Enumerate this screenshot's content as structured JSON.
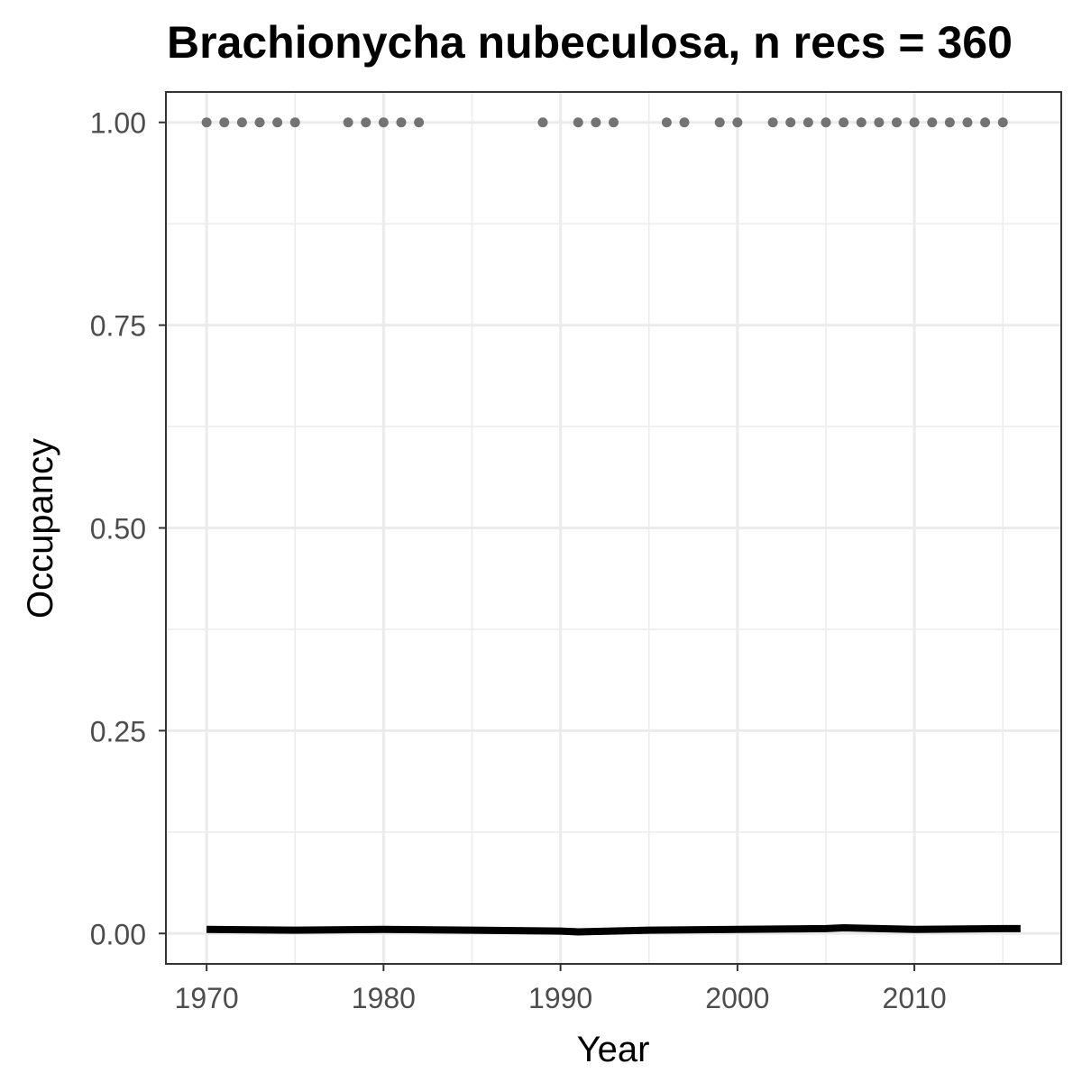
{
  "chart_data": {
    "type": "scatter",
    "title": "Brachionycha nubeculosa, n recs = 360",
    "xlabel": "Year",
    "ylabel": "Occupancy",
    "xlim": [
      1967.7,
      2018.3
    ],
    "ylim": [
      -0.0375,
      1.0375
    ],
    "x_ticks": [
      1970,
      1980,
      1990,
      2000,
      2010
    ],
    "x_tick_labels": [
      "1970",
      "1980",
      "1990",
      "2000",
      "2010"
    ],
    "x_minor_ticks": [
      1975,
      1985,
      1995,
      2005,
      2015
    ],
    "y_ticks": [
      0.0,
      0.25,
      0.5,
      0.75,
      1.0
    ],
    "y_tick_labels": [
      "0.00",
      "0.25",
      "0.50",
      "0.75",
      "1.00"
    ],
    "y_minor_ticks": [
      0.125,
      0.375,
      0.625,
      0.875
    ],
    "grid": true,
    "colors": {
      "points": "#737373",
      "line": "#000000",
      "grid": "#ebebeb",
      "panel_border": "#333333"
    },
    "series": [
      {
        "type": "scatter",
        "x": [
          1970,
          1971,
          1972,
          1973,
          1974,
          1975,
          1978,
          1979,
          1980,
          1981,
          1982,
          1989,
          1991,
          1992,
          1993,
          1996,
          1997,
          1999,
          2000,
          2002,
          2003,
          2004,
          2005,
          2006,
          2007,
          2008,
          2009,
          2010,
          2011,
          2012,
          2013,
          2014,
          2015
        ],
        "y": [
          1,
          1,
          1,
          1,
          1,
          1,
          1,
          1,
          1,
          1,
          1,
          1,
          1,
          1,
          1,
          1,
          1,
          1,
          1,
          1,
          1,
          1,
          1,
          1,
          1,
          1,
          1,
          1,
          1,
          1,
          1,
          1,
          1
        ]
      },
      {
        "type": "line",
        "x": [
          1970,
          1975,
          1980,
          1985,
          1990,
          1991,
          1995,
          2000,
          2005,
          2006,
          2010,
          2015,
          2016
        ],
        "y": [
          0.005,
          0.004,
          0.005,
          0.004,
          0.003,
          0.002,
          0.004,
          0.005,
          0.006,
          0.007,
          0.005,
          0.006,
          0.006
        ]
      }
    ]
  }
}
